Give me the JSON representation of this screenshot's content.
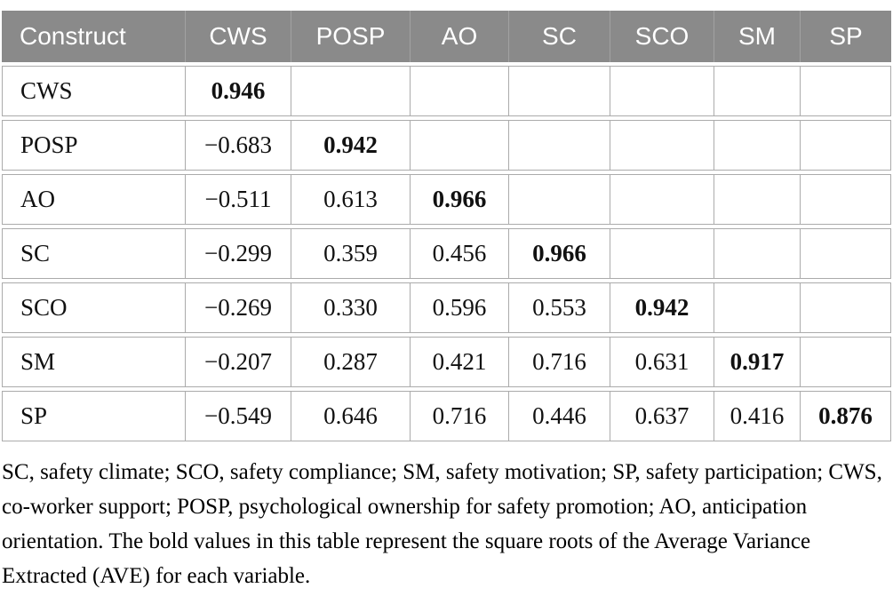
{
  "table": {
    "headers": [
      "Construct",
      "CWS",
      "POSP",
      "AO",
      "SC",
      "SCO",
      "SM",
      "SP"
    ],
    "rows": [
      {
        "label": "CWS",
        "values": [
          "0.946",
          "",
          "",
          "",
          "",
          "",
          ""
        ]
      },
      {
        "label": "POSP",
        "values": [
          "−0.683",
          "0.942",
          "",
          "",
          "",
          "",
          ""
        ]
      },
      {
        "label": "AO",
        "values": [
          "−0.511",
          "0.613",
          "0.966",
          "",
          "",
          "",
          ""
        ]
      },
      {
        "label": "SC",
        "values": [
          "−0.299",
          "0.359",
          "0.456",
          "0.966",
          "",
          "",
          ""
        ]
      },
      {
        "label": "SCO",
        "values": [
          "−0.269",
          "0.330",
          "0.596",
          "0.553",
          "0.942",
          "",
          ""
        ]
      },
      {
        "label": "SM",
        "values": [
          "−0.207",
          "0.287",
          "0.421",
          "0.716",
          "0.631",
          "0.917",
          ""
        ]
      },
      {
        "label": "SP",
        "values": [
          "−0.549",
          "0.646",
          "0.716",
          "0.446",
          "0.637",
          "0.416",
          "0.876"
        ]
      }
    ]
  },
  "footnote": "SC, safety climate; SCO, safety compliance; SM, safety motivation; SP, safety participation; CWS, co-worker support; POSP, psychological ownership for safety promotion; AO, anticipation orientation. The bold values in this table represent the square roots of the Average Variance Extracted (AVE) for each variable.",
  "colors": {
    "header_bg": "#8a8a8a",
    "header_text": "#ffffff",
    "grid_line": "#ababab",
    "body_text": "#111111"
  }
}
